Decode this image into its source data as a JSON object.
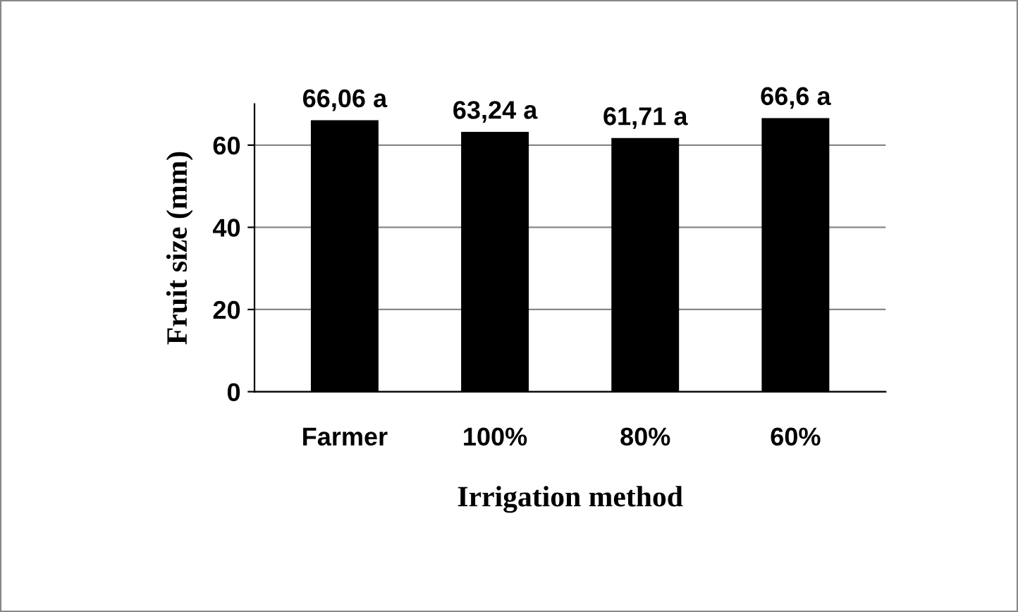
{
  "chart_data": {
    "type": "bar",
    "xlabel": "Irrigation method",
    "ylabel": "Fruit size (mm)",
    "categories": [
      "Farmer",
      "100%",
      "80%",
      "60%"
    ],
    "values": [
      66.06,
      63.24,
      61.71,
      66.6
    ],
    "value_labels": [
      "66,06 a",
      "63,24 a",
      "61,71 a",
      "66,6 a"
    ],
    "color": "#000000",
    "ylim": [
      0,
      70
    ],
    "yticks": [
      0,
      20,
      40,
      60
    ],
    "grid": "y"
  }
}
